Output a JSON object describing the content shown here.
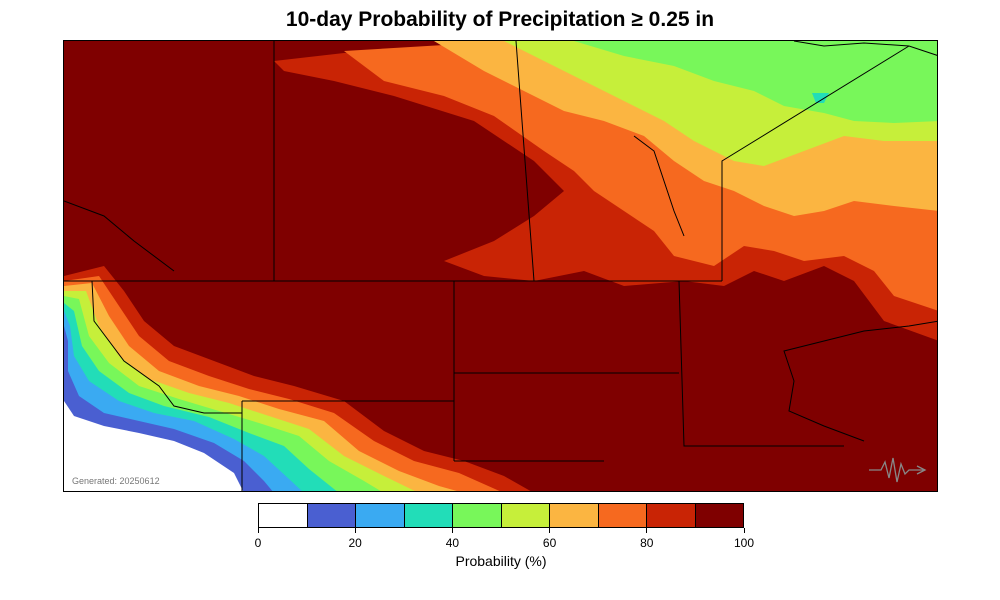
{
  "title": "10-day Probability of Precipitation ≥ 0.25 in",
  "generated_label": "Generated: 20250612",
  "colorbar": {
    "label": "Probability (%)",
    "colors": [
      "#ffffff",
      "#4a5fd1",
      "#3aaaf2",
      "#22ddb8",
      "#78f75a",
      "#c6ef3a",
      "#fbb541",
      "#f6691f",
      "#c92405",
      "#7f0000"
    ],
    "ticks": [
      "0",
      "20",
      "40",
      "60",
      "80",
      "100"
    ],
    "tick_values": [
      0,
      20,
      40,
      60,
      80,
      100
    ]
  },
  "logo": {
    "icon": "seismograph-logo-icon"
  }
}
